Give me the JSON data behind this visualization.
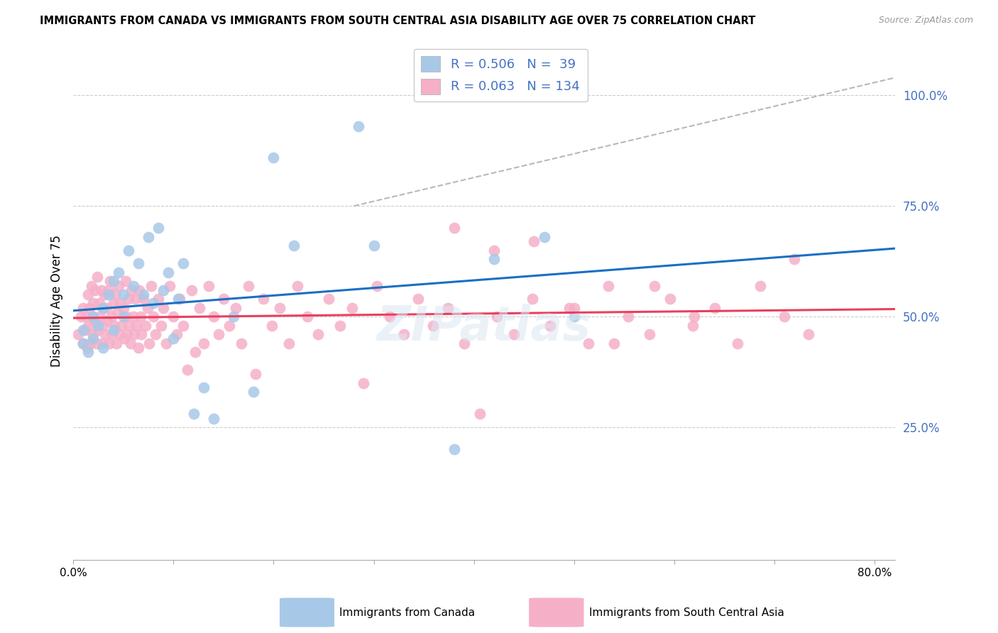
{
  "title": "IMMIGRANTS FROM CANADA VS IMMIGRANTS FROM SOUTH CENTRAL ASIA DISABILITY AGE OVER 75 CORRELATION CHART",
  "source": "Source: ZipAtlas.com",
  "ylabel": "Disability Age Over 75",
  "legend_label_canada": "Immigrants from Canada",
  "legend_label_sca": "Immigrants from South Central Asia",
  "R_canada": 0.506,
  "N_canada": 39,
  "R_sca": 0.063,
  "N_sca": 134,
  "color_canada": "#a8c8e8",
  "color_sca": "#f5b0c8",
  "line_color_canada": "#1a6fc4",
  "line_color_sca": "#e84060",
  "line_color_diagonal": "#b8b8b8",
  "watermark": "ZIPatlas",
  "xlim": [
    0.0,
    0.82
  ],
  "ylim": [
    -0.05,
    1.12
  ],
  "yticks": [
    0.25,
    0.5,
    0.75,
    1.0
  ],
  "ytick_labels": [
    "25.0%",
    "50.0%",
    "75.0%",
    "100.0%"
  ],
  "xtick_left": "0.0%",
  "xtick_right": "80.0%",
  "grid_color": "#cccccc",
  "seed": 42,
  "canada_x": [
    0.01,
    0.01,
    0.015,
    0.02,
    0.02,
    0.025,
    0.03,
    0.03,
    0.035,
    0.04,
    0.04,
    0.045,
    0.05,
    0.05,
    0.055,
    0.06,
    0.065,
    0.07,
    0.075,
    0.08,
    0.085,
    0.09,
    0.095,
    0.1,
    0.105,
    0.11,
    0.12,
    0.13,
    0.14,
    0.16,
    0.18,
    0.2,
    0.22,
    0.285,
    0.3,
    0.38,
    0.42,
    0.47,
    0.5
  ],
  "canada_y": [
    0.44,
    0.47,
    0.42,
    0.45,
    0.5,
    0.48,
    0.43,
    0.52,
    0.55,
    0.47,
    0.58,
    0.6,
    0.5,
    0.55,
    0.65,
    0.57,
    0.62,
    0.55,
    0.68,
    0.53,
    0.7,
    0.56,
    0.6,
    0.45,
    0.54,
    0.62,
    0.28,
    0.34,
    0.27,
    0.5,
    0.33,
    0.86,
    0.66,
    0.93,
    0.66,
    0.2,
    0.63,
    0.68,
    0.5
  ],
  "sca_x": [
    0.005,
    0.008,
    0.01,
    0.01,
    0.012,
    0.013,
    0.014,
    0.015,
    0.015,
    0.016,
    0.017,
    0.018,
    0.019,
    0.02,
    0.02,
    0.021,
    0.022,
    0.023,
    0.024,
    0.025,
    0.026,
    0.027,
    0.028,
    0.029,
    0.03,
    0.03,
    0.031,
    0.032,
    0.033,
    0.034,
    0.035,
    0.036,
    0.037,
    0.038,
    0.039,
    0.04,
    0.041,
    0.042,
    0.043,
    0.044,
    0.045,
    0.046,
    0.047,
    0.048,
    0.05,
    0.051,
    0.052,
    0.053,
    0.054,
    0.055,
    0.056,
    0.057,
    0.058,
    0.06,
    0.061,
    0.062,
    0.063,
    0.065,
    0.066,
    0.067,
    0.068,
    0.07,
    0.072,
    0.074,
    0.076,
    0.078,
    0.08,
    0.082,
    0.085,
    0.088,
    0.09,
    0.093,
    0.096,
    0.1,
    0.103,
    0.106,
    0.11,
    0.114,
    0.118,
    0.122,
    0.126,
    0.13,
    0.135,
    0.14,
    0.145,
    0.15,
    0.156,
    0.162,
    0.168,
    0.175,
    0.182,
    0.19,
    0.198,
    0.206,
    0.215,
    0.224,
    0.234,
    0.244,
    0.255,
    0.266,
    0.278,
    0.29,
    0.303,
    0.316,
    0.33,
    0.344,
    0.359,
    0.374,
    0.39,
    0.406,
    0.423,
    0.44,
    0.458,
    0.476,
    0.495,
    0.514,
    0.534,
    0.554,
    0.575,
    0.596,
    0.618,
    0.64,
    0.663,
    0.686,
    0.71,
    0.734,
    0.72,
    0.38,
    0.42,
    0.46,
    0.5,
    0.54,
    0.58,
    0.62
  ],
  "sca_y": [
    0.46,
    0.5,
    0.44,
    0.52,
    0.47,
    0.5,
    0.43,
    0.55,
    0.48,
    0.52,
    0.44,
    0.57,
    0.5,
    0.46,
    0.53,
    0.49,
    0.56,
    0.44,
    0.59,
    0.47,
    0.53,
    0.5,
    0.56,
    0.44,
    0.52,
    0.48,
    0.55,
    0.46,
    0.52,
    0.49,
    0.56,
    0.44,
    0.58,
    0.5,
    0.46,
    0.53,
    0.48,
    0.55,
    0.44,
    0.51,
    0.57,
    0.46,
    0.53,
    0.48,
    0.52,
    0.45,
    0.58,
    0.5,
    0.46,
    0.54,
    0.48,
    0.44,
    0.56,
    0.5,
    0.46,
    0.54,
    0.48,
    0.43,
    0.56,
    0.5,
    0.46,
    0.54,
    0.48,
    0.52,
    0.44,
    0.57,
    0.5,
    0.46,
    0.54,
    0.48,
    0.52,
    0.44,
    0.57,
    0.5,
    0.46,
    0.54,
    0.48,
    0.38,
    0.56,
    0.42,
    0.52,
    0.44,
    0.57,
    0.5,
    0.46,
    0.54,
    0.48,
    0.52,
    0.44,
    0.57,
    0.37,
    0.54,
    0.48,
    0.52,
    0.44,
    0.57,
    0.5,
    0.46,
    0.54,
    0.48,
    0.52,
    0.35,
    0.57,
    0.5,
    0.46,
    0.54,
    0.48,
    0.52,
    0.44,
    0.28,
    0.5,
    0.46,
    0.54,
    0.48,
    0.52,
    0.44,
    0.57,
    0.5,
    0.46,
    0.54,
    0.48,
    0.52,
    0.44,
    0.57,
    0.5,
    0.46,
    0.63,
    0.7,
    0.65,
    0.67,
    0.52,
    0.44,
    0.57,
    0.5
  ]
}
